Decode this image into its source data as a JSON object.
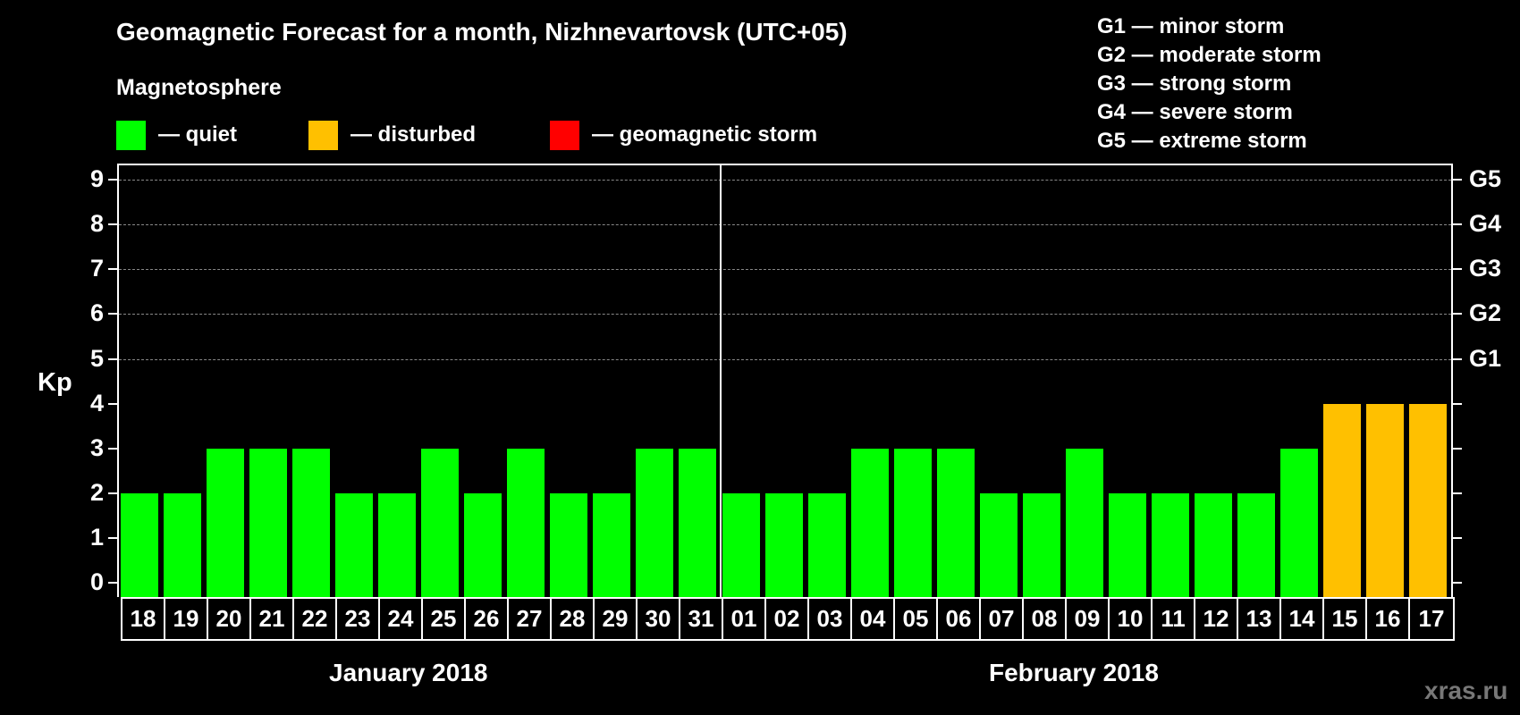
{
  "header": {
    "title": "Geomagnetic Forecast for a month, Nizhnevartovsk (UTC+05)",
    "subtitle": "Magnetosphere"
  },
  "legend": [
    {
      "label": "— quiet",
      "color": "#00ff00"
    },
    {
      "label": "— disturbed",
      "color": "#ffc000"
    },
    {
      "label": "— geomagnetic storm",
      "color": "#ff0000"
    }
  ],
  "storm_legend": [
    "G1 — minor storm",
    "G2 — moderate storm",
    "G3 — strong storm",
    "G4 — severe storm",
    "G5 — extreme storm"
  ],
  "axis": {
    "ylabel": "Kp",
    "yticks": [
      "0",
      "1",
      "2",
      "3",
      "4",
      "5",
      "6",
      "7",
      "8",
      "9"
    ],
    "right_labels": [
      {
        "kp": 5,
        "label": "G1"
      },
      {
        "kp": 6,
        "label": "G2"
      },
      {
        "kp": 7,
        "label": "G3"
      },
      {
        "kp": 8,
        "label": "G4"
      },
      {
        "kp": 9,
        "label": "G5"
      }
    ]
  },
  "months": {
    "first": "January 2018",
    "second": "February 2018"
  },
  "watermark": "xras.ru",
  "chart_data": {
    "type": "bar",
    "title": "Geomagnetic Forecast for a month, Nizhnevartovsk (UTC+05)",
    "xlabel": "",
    "ylabel": "Kp",
    "ylim": [
      0,
      9
    ],
    "grid": "dashed horizontal at Kp 5-9",
    "categories": [
      "18",
      "19",
      "20",
      "21",
      "22",
      "23",
      "24",
      "25",
      "26",
      "27",
      "28",
      "29",
      "30",
      "31",
      "01",
      "02",
      "03",
      "04",
      "05",
      "06",
      "07",
      "08",
      "09",
      "10",
      "11",
      "12",
      "13",
      "14",
      "15",
      "16",
      "17"
    ],
    "month_groups": [
      {
        "label": "January 2018",
        "days": [
          "18",
          "19",
          "20",
          "21",
          "22",
          "23",
          "24",
          "25",
          "26",
          "27",
          "28",
          "29",
          "30",
          "31"
        ]
      },
      {
        "label": "February 2018",
        "days": [
          "01",
          "02",
          "03",
          "04",
          "05",
          "06",
          "07",
          "08",
          "09",
          "10",
          "11",
          "12",
          "13",
          "14",
          "15",
          "16",
          "17"
        ]
      }
    ],
    "values": [
      2,
      2,
      3,
      3,
      3,
      2,
      2,
      3,
      2,
      3,
      2,
      2,
      3,
      3,
      2,
      2,
      2,
      3,
      3,
      3,
      2,
      2,
      3,
      2,
      2,
      2,
      2,
      3,
      4,
      4,
      4
    ],
    "status": [
      "quiet",
      "quiet",
      "quiet",
      "quiet",
      "quiet",
      "quiet",
      "quiet",
      "quiet",
      "quiet",
      "quiet",
      "quiet",
      "quiet",
      "quiet",
      "quiet",
      "quiet",
      "quiet",
      "quiet",
      "quiet",
      "quiet",
      "quiet",
      "quiet",
      "quiet",
      "quiet",
      "quiet",
      "quiet",
      "quiet",
      "quiet",
      "quiet",
      "disturbed",
      "disturbed",
      "disturbed"
    ],
    "colors": {
      "quiet": "#00ff00",
      "disturbed": "#ffc000",
      "storm": "#ff0000"
    },
    "legend": [
      "quiet",
      "disturbed",
      "geomagnetic storm"
    ]
  }
}
